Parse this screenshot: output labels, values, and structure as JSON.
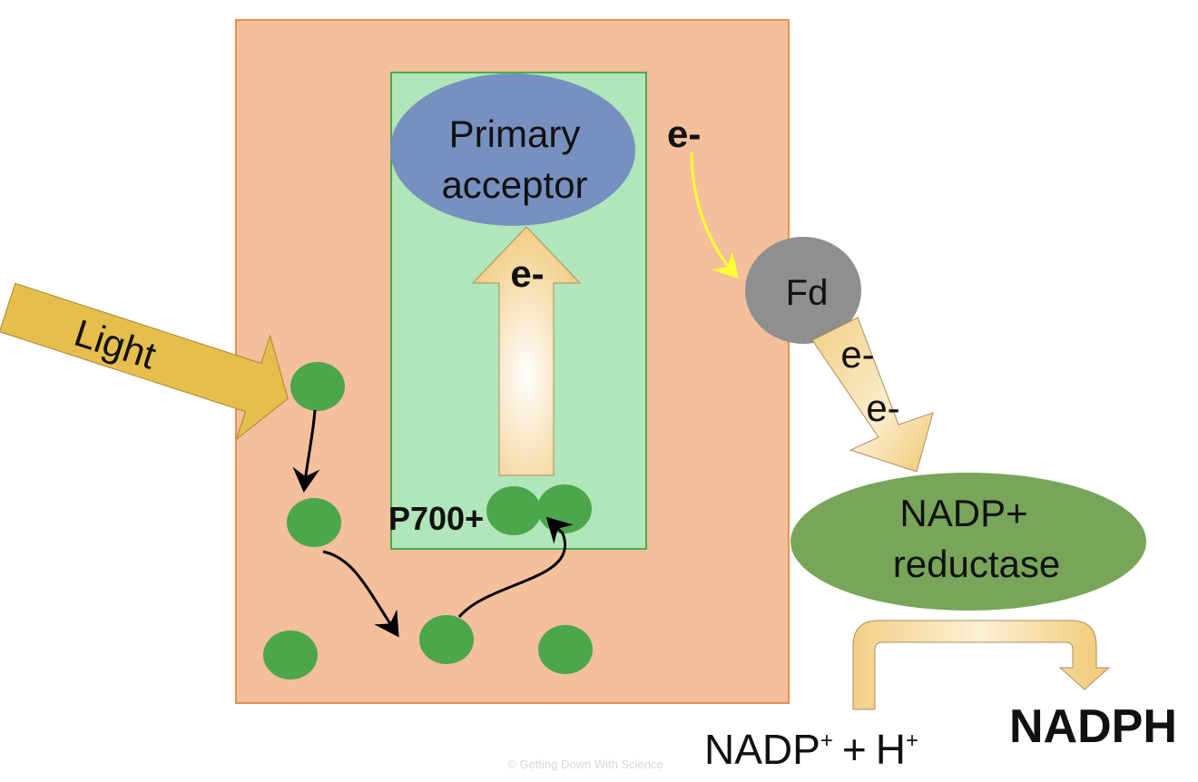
{
  "labels": {
    "primary_acceptor_line1": "Primary",
    "primary_acceptor_line2": "acceptor",
    "e_minus": "e-",
    "light": "Light",
    "p700": "P700+",
    "fd": "Fd",
    "nadp_reductase_line1": "NADP+",
    "nadp_reductase_line2": "reductase",
    "nadp_plus": "NADP",
    "plus_sign": "+",
    "h": "H",
    "nadph": "NADPH",
    "watermark": "© Getting Down With Science"
  },
  "colors": {
    "photosystem_fill": "#f4bf9b",
    "photosystem_border": "#e8904e",
    "reaction_center_fill": "#b1e6ba",
    "reaction_center_border": "#4caa4c",
    "primary_acceptor": "#7890bf",
    "pigment": "#4ca64c",
    "fd": "#8f8f8f",
    "nadp_reductase": "#78a55a",
    "light_arrow": "#e6be4e",
    "electron_path": "#ffff33"
  }
}
